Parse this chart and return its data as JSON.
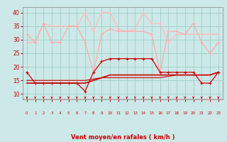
{
  "x": [
    0,
    1,
    2,
    3,
    4,
    5,
    6,
    7,
    8,
    9,
    10,
    11,
    12,
    13,
    14,
    15,
    16,
    17,
    18,
    19,
    20,
    21,
    22,
    23
  ],
  "line1_y": [
    18,
    14,
    14,
    14,
    14,
    14,
    14,
    11,
    18,
    22,
    23,
    23,
    23,
    23,
    23,
    23,
    18,
    18,
    18,
    18,
    18,
    14,
    14,
    18
  ],
  "line2_y": [
    14,
    14,
    14,
    14,
    14,
    14,
    14,
    14,
    15,
    16,
    17,
    17,
    17,
    17,
    17,
    17,
    17,
    17,
    17,
    17,
    17,
    17,
    17,
    18
  ],
  "line3_y": [
    15,
    15,
    15,
    15,
    15,
    15,
    15,
    15,
    15.5,
    16,
    16,
    16,
    16,
    16,
    16,
    16,
    16,
    16.5,
    17,
    17,
    17,
    17,
    17,
    18
  ],
  "line4_y": [
    32,
    29,
    36,
    29,
    29,
    35,
    35,
    29,
    18,
    32,
    34,
    33,
    33,
    33,
    33,
    32,
    18,
    33,
    33,
    32,
    36,
    29,
    25,
    29
  ],
  "line5_y": [
    29,
    29,
    36,
    35,
    35,
    35,
    35,
    40,
    33,
    40,
    40,
    34,
    33,
    34,
    40,
    36,
    36,
    29,
    32,
    32,
    32,
    32,
    32,
    32
  ],
  "xlabel": "Vent moyen/en rafales ( km/h )",
  "ylim": [
    8,
    42
  ],
  "xlim": [
    -0.5,
    23.5
  ],
  "yticks": [
    10,
    15,
    20,
    25,
    30,
    35,
    40
  ],
  "xticks": [
    0,
    1,
    2,
    3,
    4,
    5,
    6,
    7,
    8,
    9,
    10,
    11,
    12,
    13,
    14,
    15,
    16,
    17,
    18,
    19,
    20,
    21,
    22,
    23
  ],
  "bg_color": "#cce8e8",
  "grid_color": "#99ccbb",
  "text_color": "#cc0000",
  "color_dark": "#cc0000",
  "color_medium": "#ee6666",
  "color_light1": "#ffaaaa",
  "color_light2": "#ffbbbb",
  "figsize": [
    3.2,
    2.0
  ],
  "dpi": 100
}
